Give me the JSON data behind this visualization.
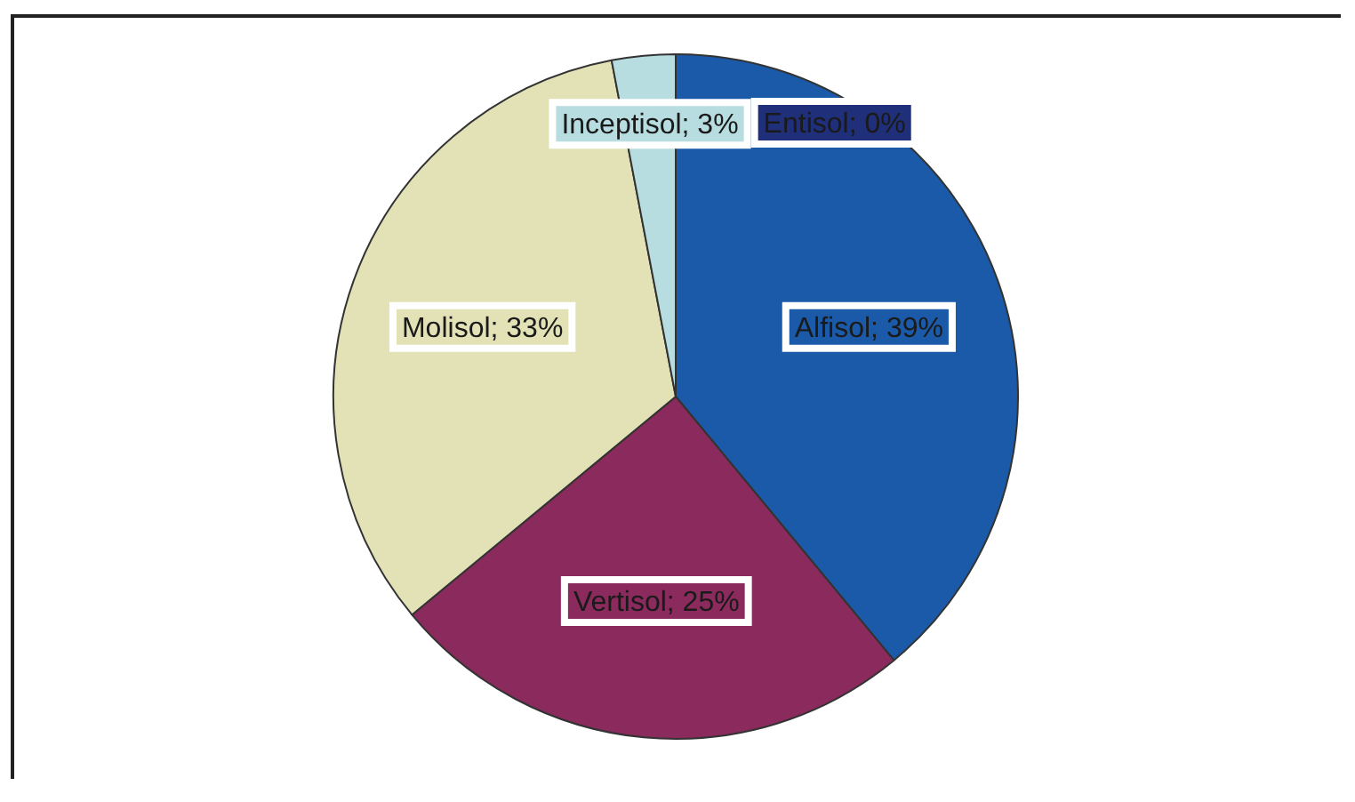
{
  "chart_data": {
    "type": "pie",
    "categories": [
      null,
      null,
      null,
      null,
      null
    ],
    "values": [
      0,
      39,
      25,
      33,
      3
    ],
    "colors": [
      "#1f2f7a",
      "#1a5aa8",
      "#8b2a5c",
      "#e3e2b6",
      "#b7dde0"
    ],
    "value_labels": [
      "Entisol; 0%",
      "Alfisol; 39%",
      "Vertisol; 25%",
      "Molisol; 33%",
      "Inceptisol; 3%"
    ],
    "legend": false
  }
}
